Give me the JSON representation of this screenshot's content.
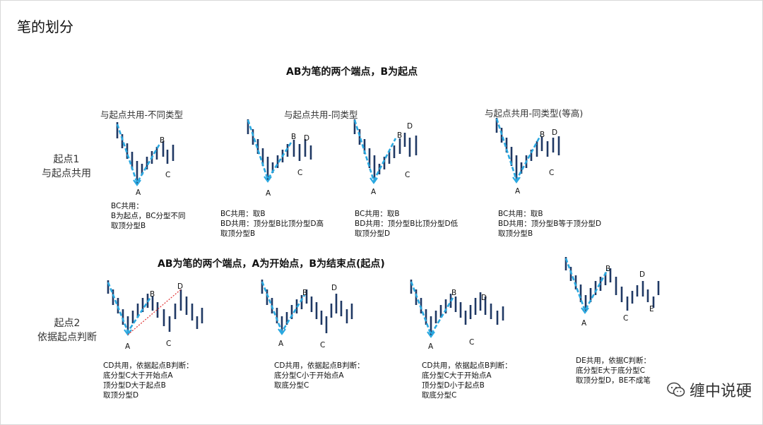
{
  "title": "笔的划分",
  "section1": {
    "heading": "AB为笔的两个端点，B为起点",
    "row_label": [
      "起点1",
      "与起点共用"
    ],
    "captions": [
      "与起点共用-不同类型",
      "与起点共用-同类型",
      "与起点共用-同类型(等高)"
    ],
    "notes": [
      [
        "BC共用：",
        "B为起点，BC分型不同",
        "取顶分型B"
      ],
      [
        "BC共用：取B",
        "BD共用：顶分型B比顶分型D高",
        "取顶分型B"
      ],
      [
        "BC共用：取B",
        "BD共用：顶分型B比顶分型D低",
        "取顶分型D"
      ],
      [
        "BC共用：取B",
        "BD共用：顶分型B等于顶分型D",
        "取顶分型B"
      ]
    ]
  },
  "section2": {
    "heading": "AB为笔的两个端点，A为开始点，B为结束点(起点)",
    "row_label": [
      "起点2",
      "依据起点判断"
    ],
    "notes": [
      [
        "CD共用，依据起点B判断：",
        "底分型C大于开始点A",
        "顶分型D大于起点B",
        "取顶分型D"
      ],
      [
        "CD共用，依据起点B判断：",
        "底分型C小于开始点A",
        "取底分型C"
      ],
      [
        "CD共用，依据起点B判断：",
        "底分型C大于开始点A",
        "顶分型D小于起点B",
        "取底分型C"
      ],
      [
        "DE共用，依据C判断：",
        "底分型E大于底分型C",
        "取顶分型D，BE不成笔"
      ]
    ]
  },
  "point_labels": {
    "A": "A",
    "B": "B",
    "C": "C",
    "D": "D",
    "E": "E"
  },
  "watermark": "缠中说硬",
  "colors": {
    "bar": "#1f3864",
    "arrow": "#2aa8e0",
    "dotted": "#e03030"
  }
}
